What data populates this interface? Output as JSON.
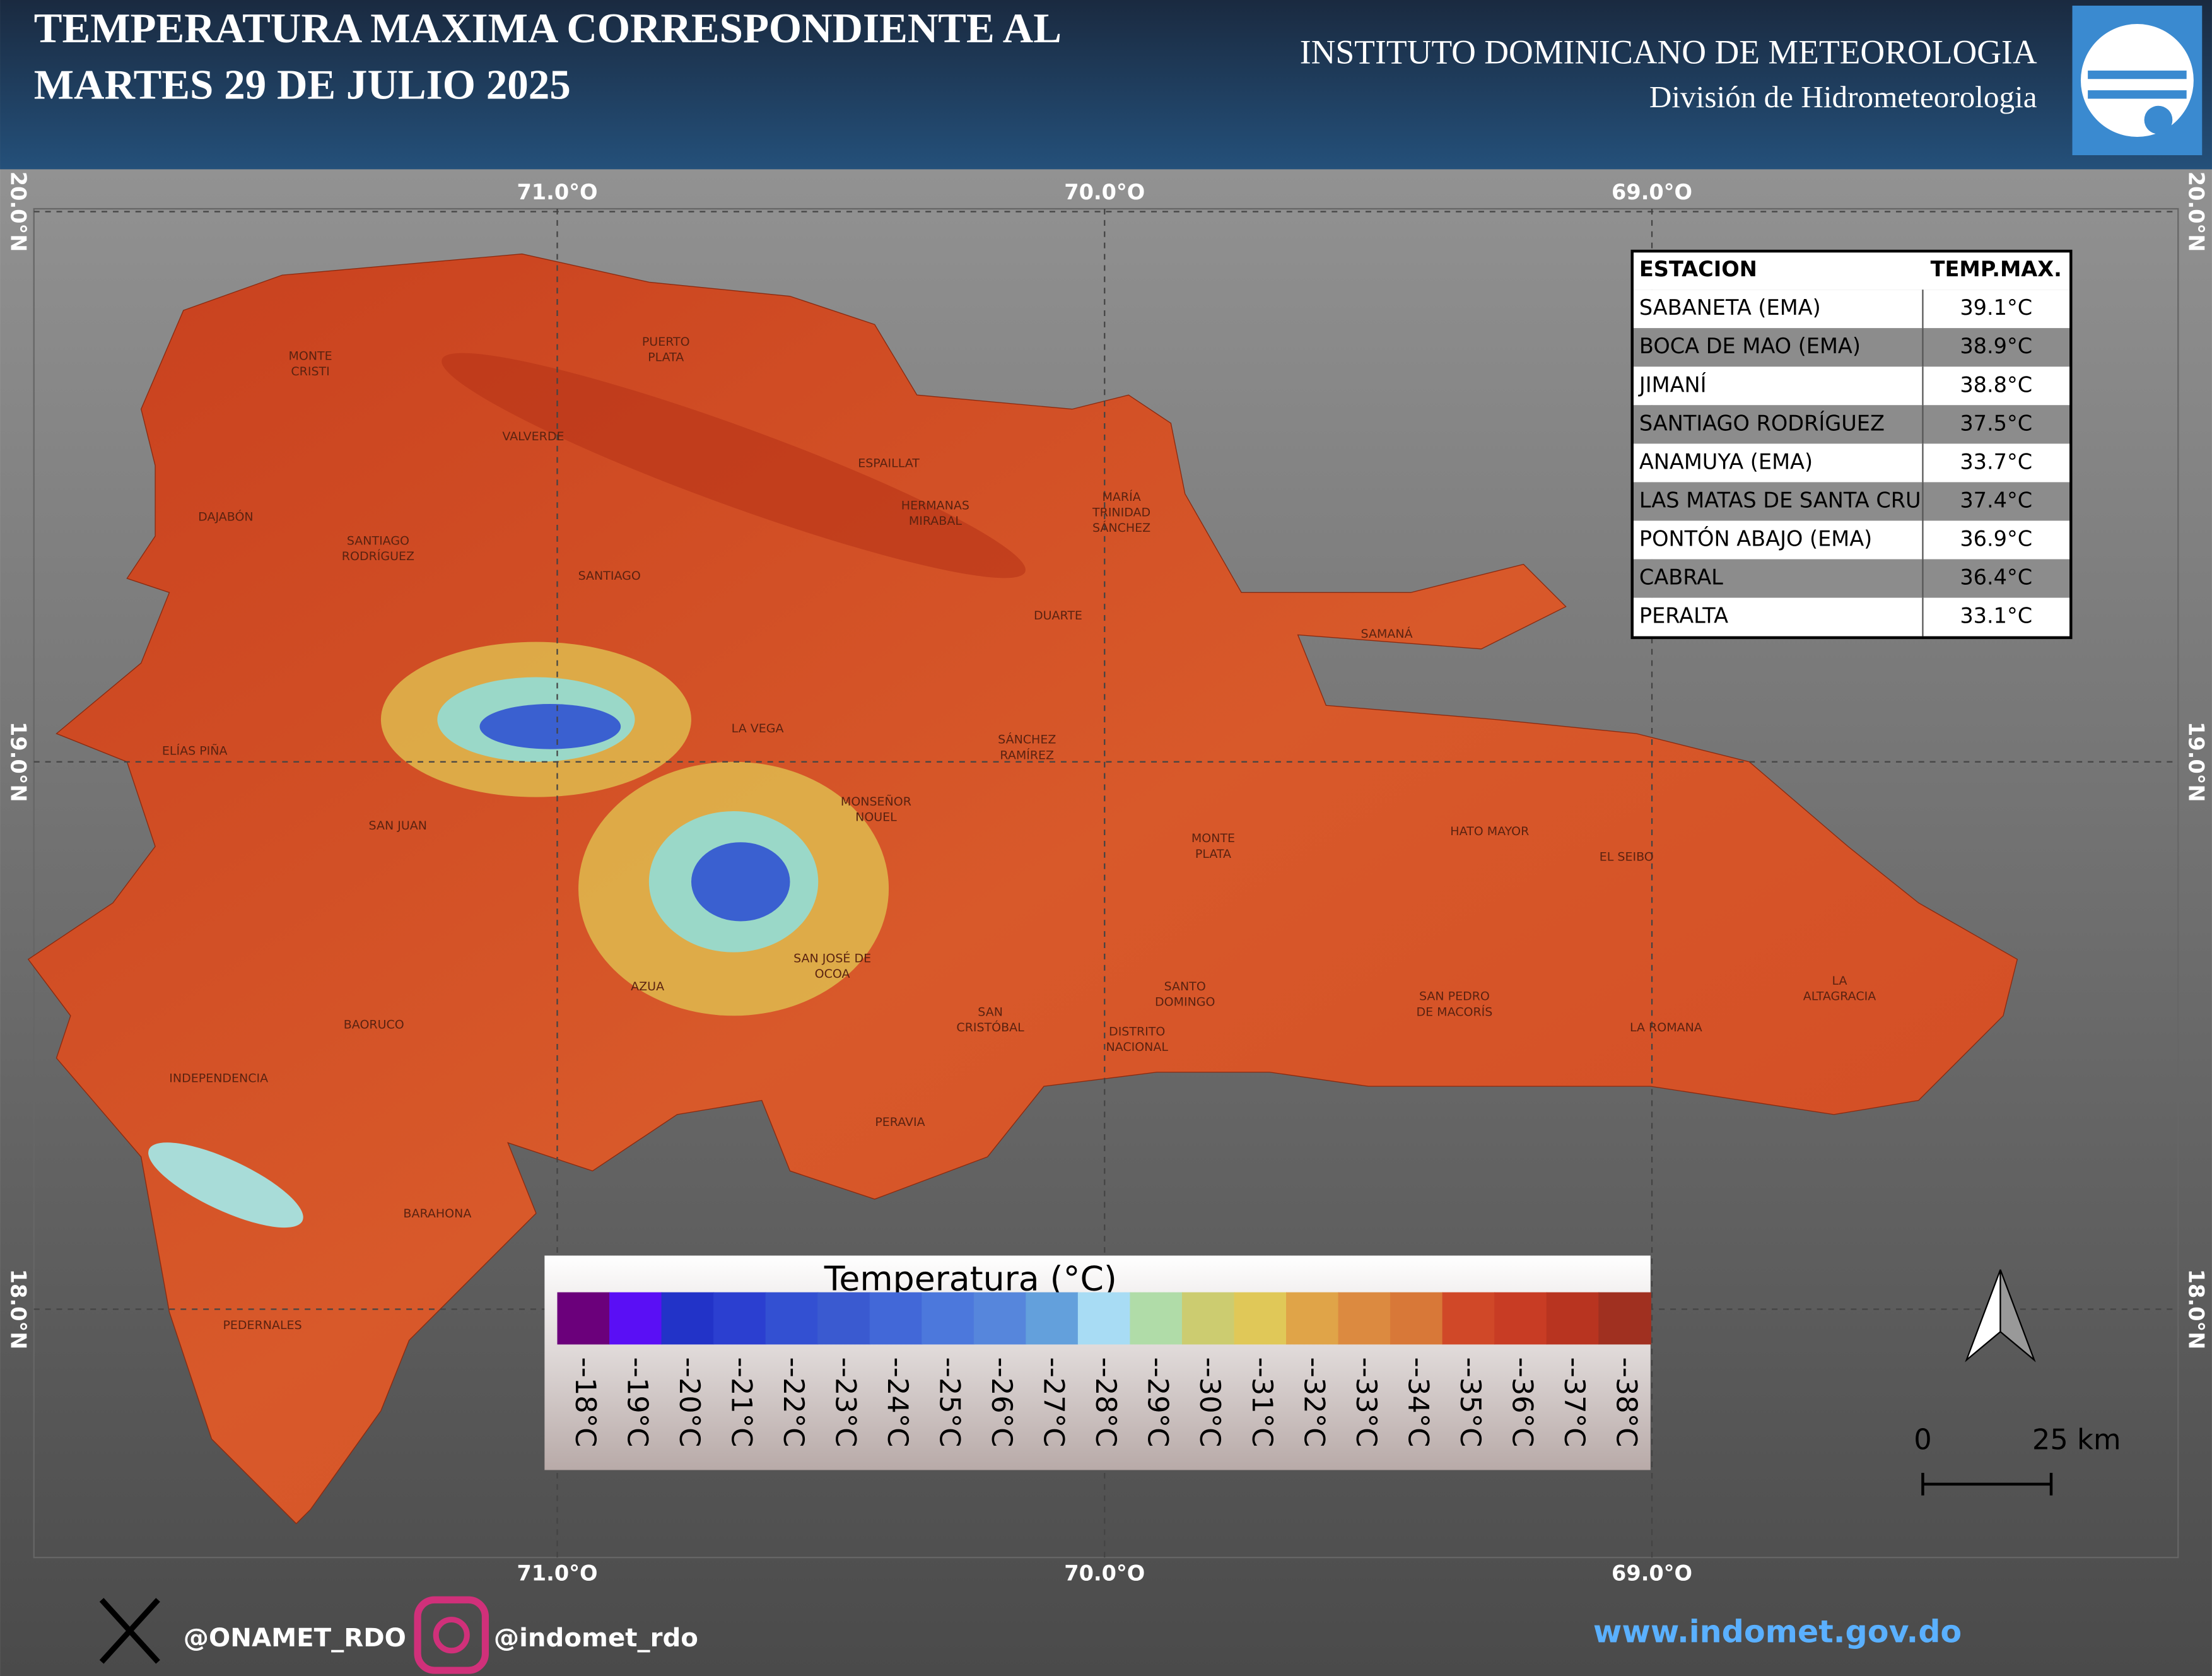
{
  "header": {
    "title_lines": [
      "TEMPERATURA MAXIMA CORRESPONDIENTE AL",
      "MARTES 29 DE JULIO 2025"
    ],
    "institute": "INSTITUTO DOMINICANO DE METEOROLOGIA",
    "division": "División de Hidrometeorologia"
  },
  "map": {
    "longitude_labels": [
      "71.0°O",
      "70.0°O",
      "69.0°O"
    ],
    "latitude_labels": [
      "20.0°N",
      "19.0°N",
      "18.0°N"
    ],
    "provinces": [
      [
        "MONTE",
        "CRISTI"
      ],
      [
        "PUERTO",
        "PLATA"
      ],
      [
        "VALVERDE"
      ],
      [
        "ESPAILLAT"
      ],
      [
        "HERMANAS",
        "MIRABAL"
      ],
      [
        "MARÍA",
        "TRINIDAD",
        "SÁNCHEZ"
      ],
      [
        "DAJABÓN"
      ],
      [
        "SANTIAGO",
        "RODRÍGUEZ"
      ],
      [
        "SANTIAGO"
      ],
      [
        "DUARTE"
      ],
      [
        "SAMANÁ"
      ],
      [
        "LA VEGA"
      ],
      [
        "ELÍAS PIÑA"
      ],
      [
        "SÁNCHEZ",
        "RAMÍREZ"
      ],
      [
        "MONSEÑOR",
        "NOUEL"
      ],
      [
        "SAN JUAN"
      ],
      [
        "MONTE",
        "PLATA"
      ],
      [
        "HATO MAYOR"
      ],
      [
        "EL SEIBO"
      ],
      [
        "SAN JOSÉ DE",
        "OCOA"
      ],
      [
        "AZUA"
      ],
      [
        "SANTO",
        "DOMINGO"
      ],
      [
        "SAN PEDRO",
        "DE MACORÍS"
      ],
      [
        "LA",
        "ALTAGRACIA"
      ],
      [
        "SAN",
        "CRISTÓBAL"
      ],
      [
        "DISTRITO",
        "NACIONAL"
      ],
      [
        "BAORUCO"
      ],
      [
        "LA ROMANA"
      ],
      [
        "INDEPENDENCIA"
      ],
      [
        "PERAVIA"
      ],
      [
        "BARAHONA"
      ],
      [
        "PEDERNALES"
      ]
    ]
  },
  "table": {
    "header": [
      "ESTACION",
      "TEMP.MAX."
    ],
    "rows": [
      [
        "SABANETA (EMA)",
        "39.1°C"
      ],
      [
        "BOCA DE MAO (EMA)",
        "38.9°C"
      ],
      [
        "JIMANÍ",
        "38.8°C"
      ],
      [
        "SANTIAGO RODRÍGUEZ",
        "37.5°C"
      ],
      [
        "ANAMUYA (EMA)",
        "33.7°C"
      ],
      [
        "LAS MATAS DE SANTA CRU",
        "37.4°C"
      ],
      [
        "PONTÓN ABAJO (EMA)",
        "36.9°C"
      ],
      [
        "CABRAL",
        "36.4°C"
      ],
      [
        "PERALTA",
        "33.1°C"
      ]
    ]
  },
  "legend": {
    "title": "Temperatura (°C)",
    "labels": [
      "--18°C",
      "--19°C",
      "--20°C",
      "--21°C",
      "--22°C",
      "--23°C",
      "--24°C",
      "--25°C",
      "--26°C",
      "--27°C",
      "--28°C",
      "--29°C",
      "--30°C",
      "--31°C",
      "--32°C",
      "--33°C",
      "--34°C",
      "--35°C",
      "--36°C",
      "--37°C",
      "--38°C"
    ],
    "colors": [
      "#6b007b",
      "#5a0ff5",
      "#2233c8",
      "#2b3fd0",
      "#3350d2",
      "#3a5ad0",
      "#4268d8",
      "#4c78dc",
      "#5686dc",
      "#63a0dc",
      "#a8dcf4",
      "#b0dca8",
      "#cccc70",
      "#e0c858",
      "#e0a448",
      "#dc8a40",
      "#d87838",
      "#d04828",
      "#c83c24",
      "#b83420",
      "#a03020"
    ]
  },
  "scale_bar": {
    "labels": [
      "0",
      "25 km"
    ]
  },
  "footer": {
    "x_handle": "@ONAMET_RDO",
    "instagram": "@indomet_rdo",
    "website": "www.indomet.gov.do"
  }
}
